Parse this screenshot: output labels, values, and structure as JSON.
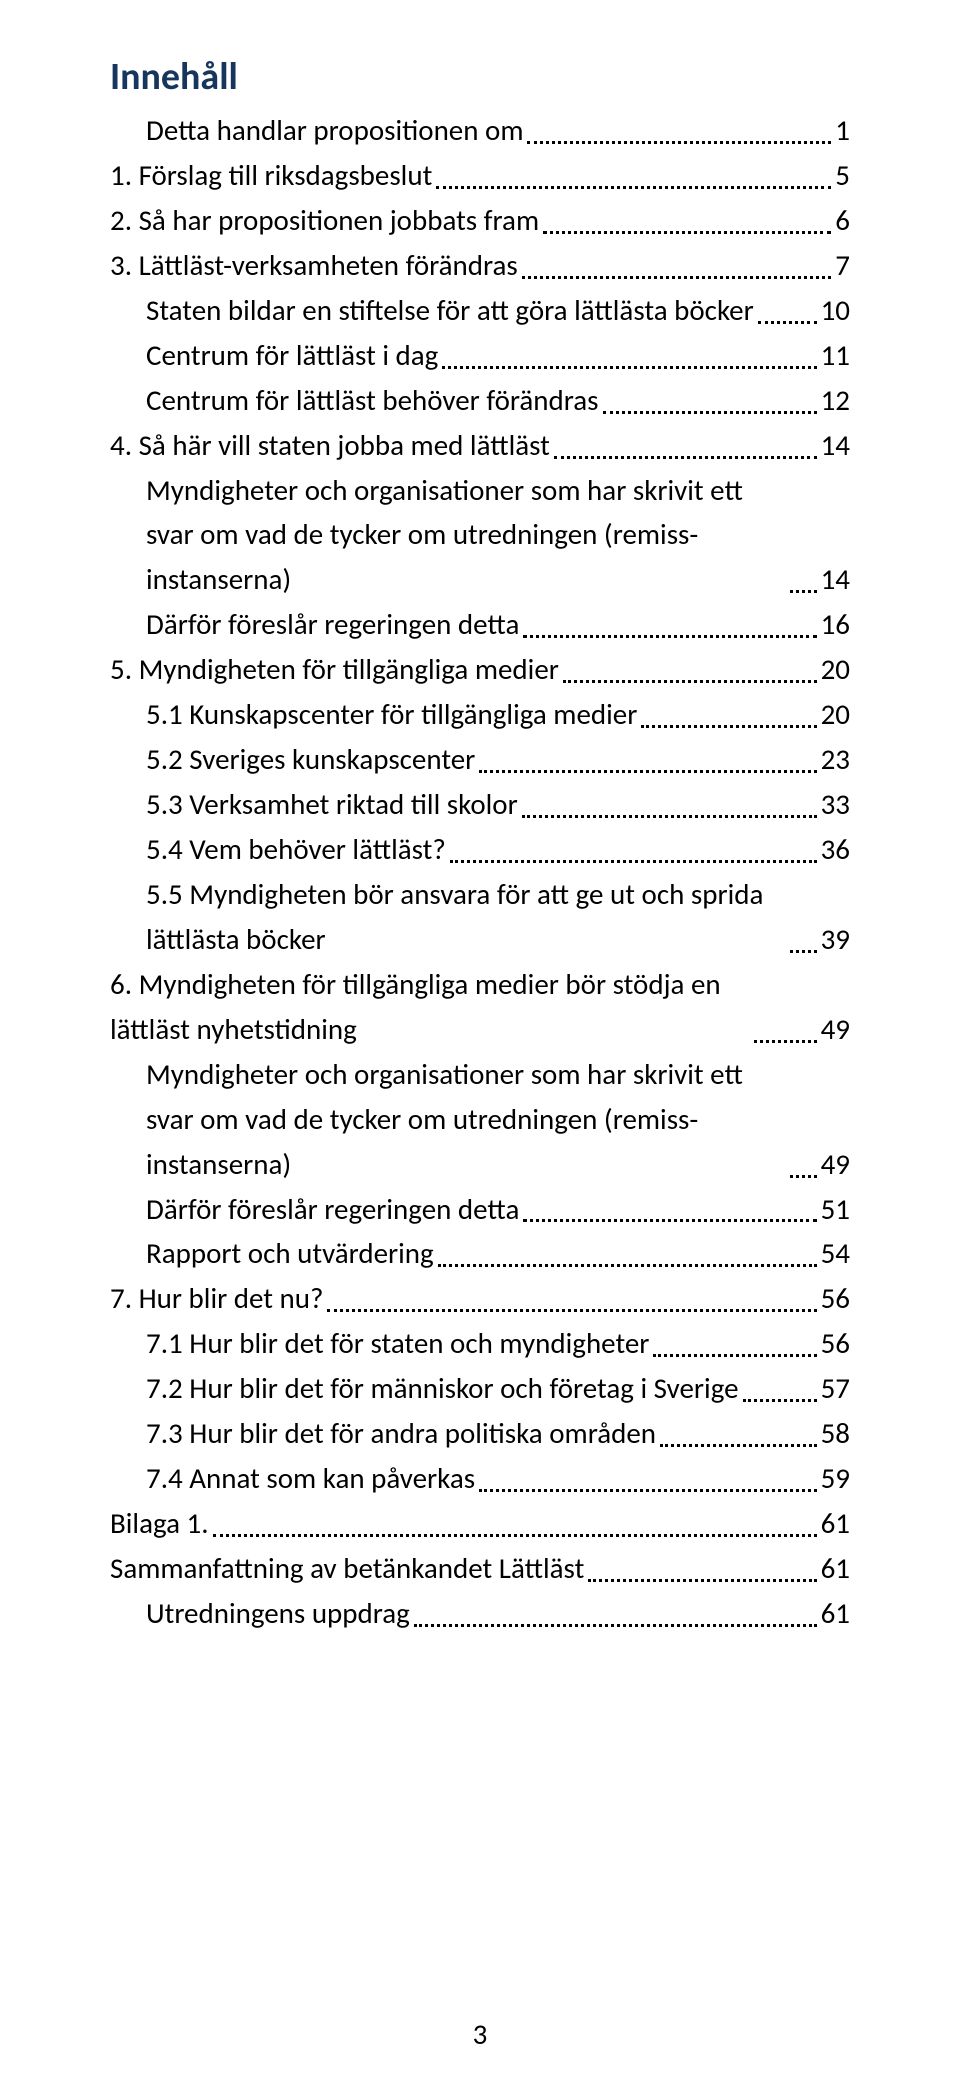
{
  "title": "Innehåll",
  "page_number": "3",
  "colors": {
    "title_color": "#17365d",
    "text_color": "#000000",
    "background": "#ffffff",
    "leader_color": "#000000"
  },
  "typography": {
    "title_fontsize_pt": 28,
    "entry_fontsize_pt": 22,
    "font_family": "Calibri"
  },
  "entries": [
    {
      "level": 1,
      "label": "Detta handlar propositionen om",
      "page": "1"
    },
    {
      "level": 0,
      "label": "1.   Förslag till riksdagsbeslut",
      "page": "5"
    },
    {
      "level": 0,
      "label": "2.   Så har propositionen jobbats fram",
      "page": "6"
    },
    {
      "level": 0,
      "label": "3.   Lättläst-verksamheten  förändras",
      "page": "7"
    },
    {
      "level": 1,
      "label": "Staten bildar en stiftelse  för att göra lättlästa böcker",
      "page": "10"
    },
    {
      "level": 1,
      "label": "Centrum för lättläst i dag",
      "page": "11"
    },
    {
      "level": 1,
      "label": "Centrum för lättläst behöver förändras",
      "page": "12"
    },
    {
      "level": 0,
      "label": "4.   Så här vill staten jobba med lättläst",
      "page": "14"
    },
    {
      "level": 1,
      "label": "Myndigheter och organisationer som har skrivit ett svar om vad de tycker om utredningen (remiss-instanserna)",
      "page": "14"
    },
    {
      "level": 1,
      "label": "Därför föreslår regeringen detta",
      "page": "16"
    },
    {
      "level": 0,
      "label": "5.   Myndigheten för tillgängliga medier",
      "page": "20"
    },
    {
      "level": 1,
      "label": "5.1 Kunskapscenter för tillgängliga medier",
      "page": "20"
    },
    {
      "level": 1,
      "label": "5.2 Sveriges kunskapscenter",
      "page": "23"
    },
    {
      "level": 1,
      "label": "5.3 Verksamhet riktad till skolor",
      "page": "33"
    },
    {
      "level": 1,
      "label": "5.4 Vem behöver lättläst?",
      "page": "36"
    },
    {
      "level": 1,
      "label": "5.5  Myndigheten bör ansvara  för att ge ut och sprida lättlästa böcker",
      "page": "39"
    },
    {
      "level": 0,
      "label": "6.  Myndigheten för tillgängliga medier  bör stödja  en lättläst nyhetstidning",
      "page": "49"
    },
    {
      "level": 1,
      "label": "Myndigheter och organisationer som har skrivit ett svar om vad de tycker om utredningen (remiss-instanserna)",
      "page": "49"
    },
    {
      "level": 1,
      "label": "Därför föreslår regeringen detta",
      "page": "51"
    },
    {
      "level": 1,
      "label": "Rapport och utvärdering",
      "page": "54"
    },
    {
      "level": 0,
      "label": "7.  Hur blir det nu?",
      "page": "56"
    },
    {
      "level": 1,
      "label": "7.1 Hur blir det för staten och myndigheter",
      "page": "56"
    },
    {
      "level": 1,
      "label": "7.2 Hur blir det för människor  och företag i Sverige",
      "page": "57"
    },
    {
      "level": 1,
      "label": "7.3 Hur blir det  för andra politiska områden",
      "page": "58"
    },
    {
      "level": 1,
      "label": "7.4 Annat som kan påverkas",
      "page": "59"
    },
    {
      "level": 0,
      "label": "Bilaga 1.",
      "page": "61"
    },
    {
      "level": 0,
      "label": "Sammanfattning  av betänkandet Lättläst",
      "page": "61"
    },
    {
      "level": 1,
      "label": "Utredningens uppdrag",
      "page": "61"
    }
  ]
}
